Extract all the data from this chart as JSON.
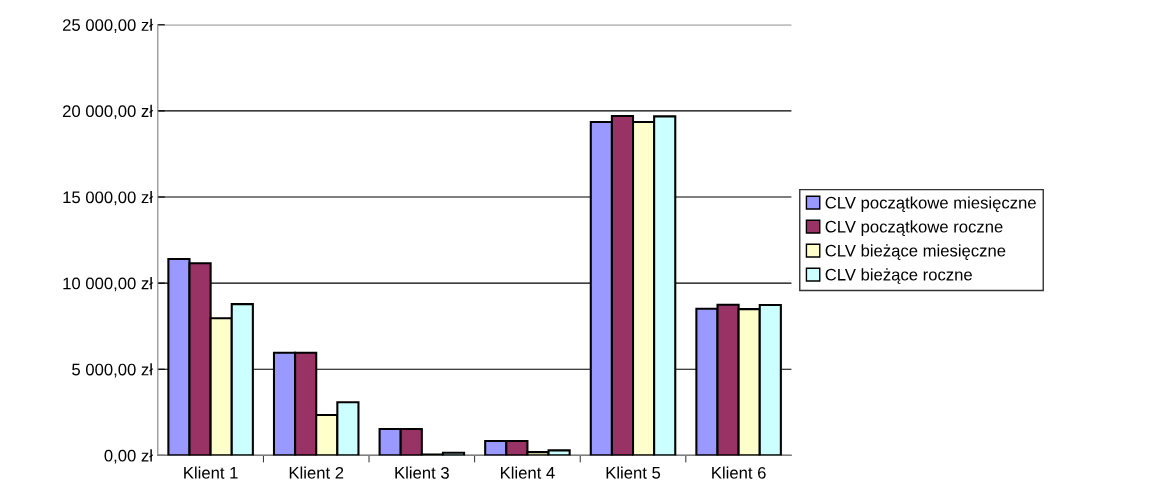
{
  "chart_data": {
    "type": "bar",
    "categories": [
      "Klient 1",
      "Klient 2",
      "Klient 3",
      "Klient 4",
      "Klient 5",
      "Klient 6"
    ],
    "series": [
      {
        "name": "CLV początkowe miesięczne",
        "color": "#9999ff",
        "values": [
          11400,
          5960,
          1530,
          840,
          19350,
          8510
        ]
      },
      {
        "name": "CLV początkowe roczne",
        "color": "#993366",
        "values": [
          11150,
          5960,
          1530,
          840,
          19700,
          8750
        ]
      },
      {
        "name": "CLV bieżące miesięczne",
        "color": "#ffffcc",
        "values": [
          7960,
          2350,
          50,
          190,
          19350,
          8490
        ]
      },
      {
        "name": "CLV bieżące roczne",
        "color": "#ccffff",
        "values": [
          8780,
          3090,
          150,
          290,
          19680,
          8730
        ]
      }
    ],
    "ylim": [
      0,
      25000
    ],
    "yticks": [
      {
        "value": 0,
        "label": "0,00 zł"
      },
      {
        "value": 5000,
        "label": "5 000,00 zł"
      },
      {
        "value": 10000,
        "label": "10 000,00 zł"
      },
      {
        "value": 15000,
        "label": "15 000,00 zł"
      },
      {
        "value": 20000,
        "label": "20 000,00 zł"
      },
      {
        "value": 25000,
        "label": "25 000,00 zł"
      }
    ],
    "grid": "y",
    "legend": "right"
  }
}
